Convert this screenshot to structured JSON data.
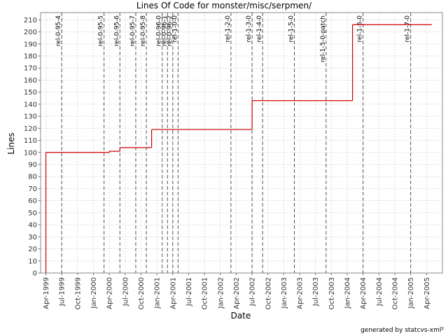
{
  "chart_data": {
    "type": "step",
    "title": "Lines Of Code for monster/misc/serpmen/",
    "x_label": "Date",
    "y_label": "Lines",
    "footer": "generated by statcvs-xml²",
    "x": [
      "1999-04",
      "2000-04",
      "2000-06",
      "2000-12",
      "2002-07",
      "2004-02",
      "2005-05"
    ],
    "series": [
      {
        "name": "Lines",
        "color": "#cc0000",
        "values": [
          100,
          101,
          104,
          119,
          143,
          206,
          206
        ]
      }
    ],
    "markers": [
      {
        "label": "rel-0-95-4",
        "x": "1999-07"
      },
      {
        "label": "rel-0-95-5",
        "x": "2000-03"
      },
      {
        "label": "rel-0-95-6",
        "x": "2000-06"
      },
      {
        "label": "rel-0-95-7",
        "x": "2000-09"
      },
      {
        "label": "rel-0-95-8",
        "x": "2000-11"
      },
      {
        "label": "rel-0-96-0",
        "x": "2001-02"
      },
      {
        "label": "rel-0-96-1",
        "x": "2001-03"
      },
      {
        "label": "rel-0-96-2",
        "x": "2001-04"
      },
      {
        "label": "rel-1-0-0",
        "x": "2001-05"
      },
      {
        "label": "rel-1-2-0",
        "x": "2002-03"
      },
      {
        "label": "rel-1-3-0",
        "x": "2002-07"
      },
      {
        "label": "rel-1-4-0",
        "x": "2002-09"
      },
      {
        "label": "rel-1-5-0",
        "x": "2003-03"
      },
      {
        "label": "rel-1-5-0-patch",
        "x": "2003-09"
      },
      {
        "label": "rel-1-6-0",
        "x": "2004-04"
      },
      {
        "label": "rel-1-7-0",
        "x": "2005-01"
      }
    ],
    "xlim": [
      "1999-03",
      "2005-07"
    ],
    "xticks": [
      {
        "value": "1999-04",
        "label": "Apr-1999"
      },
      {
        "value": "1999-07",
        "label": "Jul-1999"
      },
      {
        "value": "1999-10",
        "label": "Oct-1999"
      },
      {
        "value": "2000-01",
        "label": "Jan-2000"
      },
      {
        "value": "2000-04",
        "label": "Apr-2000"
      },
      {
        "value": "2000-07",
        "label": "Jul-2000"
      },
      {
        "value": "2000-10",
        "label": "Oct-2000"
      },
      {
        "value": "2001-01",
        "label": "Jan-2001"
      },
      {
        "value": "2001-04",
        "label": "Apr-2001"
      },
      {
        "value": "2001-07",
        "label": "Jul-2001"
      },
      {
        "value": "2001-10",
        "label": "Oct-2001"
      },
      {
        "value": "2002-01",
        "label": "Jan-2002"
      },
      {
        "value": "2002-04",
        "label": "Apr-2002"
      },
      {
        "value": "2002-07",
        "label": "Jul-2002"
      },
      {
        "value": "2002-10",
        "label": "Oct-2002"
      },
      {
        "value": "2003-01",
        "label": "Jan-2003"
      },
      {
        "value": "2003-04",
        "label": "Apr-2003"
      },
      {
        "value": "2003-07",
        "label": "Jul-2003"
      },
      {
        "value": "2003-10",
        "label": "Oct-2003"
      },
      {
        "value": "2004-01",
        "label": "Jan-2004"
      },
      {
        "value": "2004-04",
        "label": "Apr-2004"
      },
      {
        "value": "2004-07",
        "label": "Jul-2004"
      },
      {
        "value": "2004-10",
        "label": "Oct-2004"
      },
      {
        "value": "2005-01",
        "label": "Jan-2005"
      },
      {
        "value": "2005-04",
        "label": "Apr-2005"
      }
    ],
    "ylim": [
      0,
      216
    ],
    "yticks": [
      0,
      10,
      20,
      30,
      40,
      50,
      60,
      70,
      80,
      90,
      100,
      110,
      120,
      130,
      140,
      150,
      160,
      170,
      180,
      190,
      200,
      210
    ],
    "grid": true
  }
}
